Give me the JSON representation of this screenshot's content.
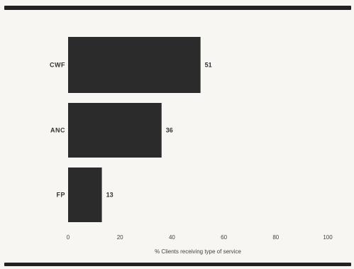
{
  "chart_data": {
    "type": "bar",
    "orientation": "horizontal",
    "categories": [
      "CWF",
      "ANC",
      "FP"
    ],
    "values": [
      51,
      36,
      13
    ],
    "value_labels": [
      "51",
      "36",
      "13"
    ],
    "xlabel": "% Clients receiving type of service",
    "xlim": [
      0,
      100
    ],
    "xticks": [
      "0",
      "20",
      "40",
      "60",
      "80",
      "100"
    ],
    "grid": false,
    "bar_color": "#2b2b2b"
  }
}
